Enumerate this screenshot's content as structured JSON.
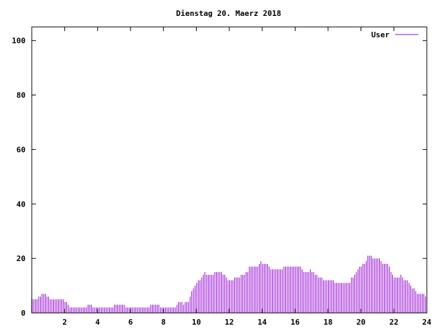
{
  "chart_data": {
    "type": "bar",
    "title": "Dienstag 20. Maerz 2018",
    "xlabel": "",
    "ylabel": "",
    "xlim": [
      0,
      24
    ],
    "ylim": [
      0,
      105
    ],
    "xticks": [
      2,
      4,
      6,
      8,
      10,
      12,
      14,
      16,
      18,
      20,
      22,
      24
    ],
    "yticks": [
      0,
      20,
      40,
      60,
      80,
      100
    ],
    "xtick_labels": [
      "2",
      "4",
      "6",
      "8",
      "10",
      "12",
      "14",
      "16",
      "18",
      "20",
      "22",
      "24"
    ],
    "ytick_labels": [
      "0",
      "20",
      "40",
      "60",
      "80",
      "100"
    ],
    "grid": false,
    "legend_position": "top-right",
    "x_step_hours": 0.1,
    "series": [
      {
        "name": "User",
        "color": "#9400d3",
        "values": [
          5,
          5,
          5,
          5,
          6,
          6,
          7,
          7,
          7,
          6,
          6,
          5,
          5,
          5,
          5,
          5,
          5,
          5,
          5,
          5,
          4,
          4,
          3,
          2,
          2,
          2,
          2,
          2,
          2,
          2,
          2,
          2,
          2,
          2,
          3,
          3,
          3,
          2,
          2,
          2,
          2,
          2,
          2,
          2,
          2,
          2,
          2,
          2,
          2,
          2,
          3,
          3,
          3,
          3,
          3,
          3,
          3,
          2,
          2,
          2,
          2,
          2,
          2,
          2,
          2,
          2,
          2,
          2,
          2,
          2,
          2,
          2,
          3,
          3,
          3,
          3,
          3,
          3,
          2,
          2,
          2,
          2,
          2,
          2,
          2,
          2,
          2,
          2,
          3,
          4,
          4,
          4,
          3,
          4,
          4,
          4,
          6,
          8,
          9,
          10,
          11,
          12,
          12,
          13,
          14,
          15,
          14,
          14,
          14,
          14,
          14,
          15,
          15,
          15,
          15,
          15,
          14,
          14,
          13,
          12,
          12,
          12,
          12,
          13,
          13,
          13,
          13,
          14,
          14,
          14,
          15,
          15,
          17,
          17,
          17,
          17,
          17,
          17,
          18,
          19,
          18,
          18,
          18,
          18,
          17,
          16,
          16,
          16,
          16,
          16,
          16,
          16,
          16,
          17,
          17,
          17,
          17,
          17,
          17,
          17,
          17,
          17,
          17,
          17,
          16,
          15,
          15,
          15,
          15,
          16,
          15,
          15,
          14,
          14,
          13,
          13,
          13,
          12,
          12,
          12,
          12,
          12,
          12,
          12,
          11,
          11,
          11,
          11,
          11,
          11,
          11,
          11,
          11,
          11,
          13,
          13,
          14,
          15,
          16,
          17,
          17,
          18,
          18,
          19,
          21,
          21,
          21,
          20,
          20,
          20,
          20,
          20,
          19,
          18,
          18,
          18,
          18,
          17,
          15,
          14,
          13,
          13,
          13,
          13,
          14,
          13,
          12,
          12,
          12,
          11,
          10,
          9,
          9,
          8,
          7,
          7,
          7,
          7,
          7,
          6
        ]
      }
    ]
  }
}
